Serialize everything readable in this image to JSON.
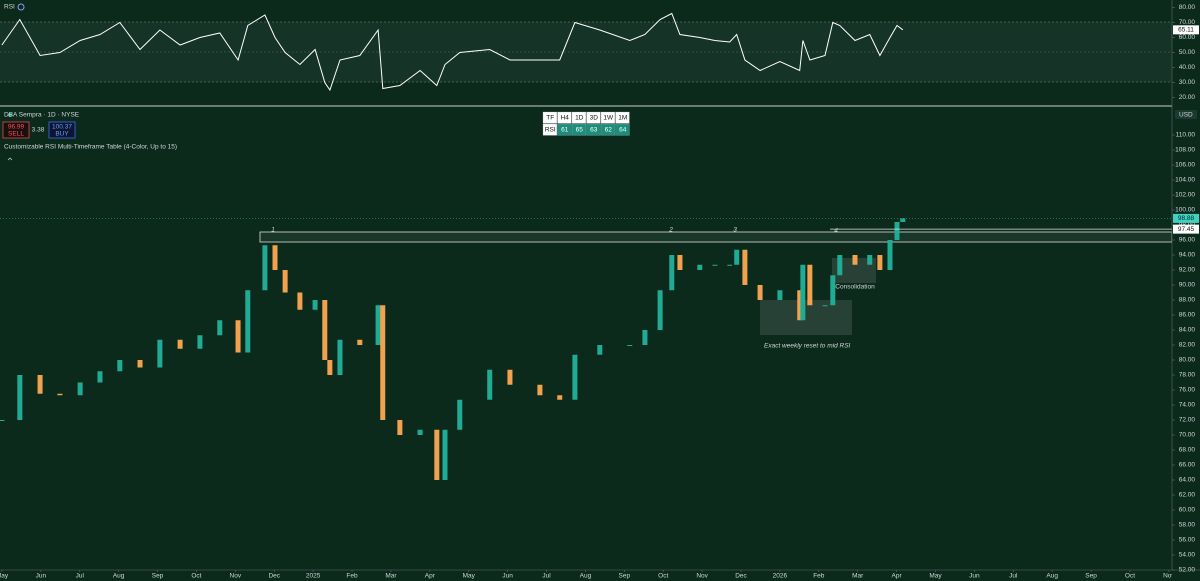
{
  "chart_data": [
    {
      "type": "candlestick",
      "title": "DBA Sempra · 1D · NYSE",
      "unit": "USD",
      "up_color": "#22ab94",
      "down_color": "#f2a24e",
      "x": [
        0.0,
        0.46,
        0.98,
        1.49,
        2.01,
        2.52,
        3.03,
        3.55,
        4.06,
        4.58,
        5.09,
        5.6,
        6.07,
        6.32,
        6.76,
        7.02,
        7.28,
        7.66,
        8.05,
        8.3,
        8.43,
        8.69,
        9.2,
        9.67,
        9.79,
        10.23,
        10.75,
        11.18,
        11.39,
        11.77,
        12.54,
        13.06,
        13.83,
        14.34,
        14.73,
        15.37,
        16.14,
        16.53,
        16.92,
        17.22,
        17.43,
        17.94,
        18.33,
        18.71,
        18.89,
        19.1,
        19.49,
        20.0,
        20.51,
        20.59,
        20.77,
        21.16,
        21.36,
        21.54,
        21.93,
        22.31,
        22.57,
        22.83,
        23.01,
        23.16
      ],
      "values": [
        72.0,
        78.0,
        75.5,
        75.3,
        77.0,
        78.5,
        80.0,
        79.0,
        82.7,
        81.5,
        83.3,
        85.3,
        81.0,
        89.3,
        95.3,
        92.0,
        89.0,
        86.7,
        88.0,
        80.0,
        78.0,
        82.7,
        82.0,
        87.3,
        72.0,
        70.0,
        70.7,
        64.0,
        70.7,
        74.7,
        78.7,
        76.7,
        75.3,
        74.7,
        80.7,
        82.0,
        82.0,
        84.0,
        89.3,
        94.0,
        92.0,
        92.7,
        92.7,
        92.7,
        94.7,
        90.0,
        88.0,
        89.3,
        85.3,
        92.7,
        87.3,
        87.3,
        91.3,
        94.0,
        92.7,
        94.0,
        92.0,
        96.0,
        98.4,
        98.88
      ],
      "levels": [
        97.45
      ],
      "xlim": [
        -0.05,
        30.08
      ],
      "xticks": [
        {
          "value": 0,
          "label": "May"
        },
        {
          "value": 1,
          "label": "Jun"
        },
        {
          "value": 2,
          "label": "Jul"
        },
        {
          "value": 3,
          "label": "Aug"
        },
        {
          "value": 4,
          "label": "Sep"
        },
        {
          "value": 5,
          "label": "Oct"
        },
        {
          "value": 6,
          "label": "Nov"
        },
        {
          "value": 7,
          "label": "Dec"
        },
        {
          "value": 8,
          "label": "2025"
        },
        {
          "value": 9,
          "label": "Feb"
        },
        {
          "value": 10,
          "label": "Mar"
        },
        {
          "value": 11,
          "label": "Apr"
        },
        {
          "value": 12,
          "label": "May"
        },
        {
          "value": 13,
          "label": "Jun"
        },
        {
          "value": 14,
          "label": "Jul"
        },
        {
          "value": 15,
          "label": "Aug"
        },
        {
          "value": 16,
          "label": "Sep"
        },
        {
          "value": 17,
          "label": "Oct"
        },
        {
          "value": 18,
          "label": "Nov"
        },
        {
          "value": 19,
          "label": "Dec"
        },
        {
          "value": 20,
          "label": "2026"
        },
        {
          "value": 21,
          "label": "Feb"
        },
        {
          "value": 22,
          "label": "Mar"
        },
        {
          "value": 23,
          "label": "Apr"
        },
        {
          "value": 24,
          "label": "May"
        },
        {
          "value": 25,
          "label": "Jun"
        },
        {
          "value": 26,
          "label": "Jul"
        },
        {
          "value": 27,
          "label": "Aug"
        },
        {
          "value": 28,
          "label": "Sep"
        },
        {
          "value": 29,
          "label": "Oct"
        },
        {
          "value": 30,
          "label": "Nov"
        }
      ],
      "ylim": [
        52,
        113.6
      ],
      "yticks": [
        {
          "value": 52,
          "label": "52.00"
        },
        {
          "value": 54,
          "label": "54.00"
        },
        {
          "value": 56,
          "label": "56.00"
        },
        {
          "value": 58,
          "label": "58.00"
        },
        {
          "value": 60,
          "label": "60.00"
        },
        {
          "value": 62,
          "label": "62.00"
        },
        {
          "value": 64,
          "label": "64.00"
        },
        {
          "value": 66,
          "label": "66.00"
        },
        {
          "value": 68,
          "label": "68.00"
        },
        {
          "value": 70,
          "label": "70.00"
        },
        {
          "value": 72,
          "label": "72.00"
        },
        {
          "value": 74,
          "label": "74.00"
        },
        {
          "value": 76,
          "label": "76.00"
        },
        {
          "value": 78,
          "label": "78.00"
        },
        {
          "value": 80,
          "label": "80.00"
        },
        {
          "value": 82,
          "label": "82.00"
        },
        {
          "value": 84,
          "label": "84.00"
        },
        {
          "value": 86,
          "label": "86.00"
        },
        {
          "value": 88,
          "label": "88.00"
        },
        {
          "value": 90,
          "label": "90.00"
        },
        {
          "value": 92,
          "label": "92.00"
        },
        {
          "value": 94,
          "label": "94.00"
        },
        {
          "value": 96,
          "label": "96.00"
        },
        {
          "value": 98,
          "label": "98.00"
        },
        {
          "value": 100,
          "label": "100.00"
        },
        {
          "value": 102,
          "label": "102.00"
        },
        {
          "value": 104,
          "label": "104.00"
        },
        {
          "value": 106,
          "label": "106.00"
        },
        {
          "value": 108,
          "label": "108.00"
        },
        {
          "value": 110,
          "label": "110.00"
        }
      ],
      "annotations": [
        "1",
        "2",
        "3",
        "4",
        "Consolidation",
        "Exact weekly reset to mid RSI"
      ]
    },
    {
      "type": "line",
      "title": "RSI",
      "color": "#ffffff",
      "x": [
        0.0,
        0.46,
        0.98,
        1.49,
        2.01,
        2.52,
        3.03,
        3.55,
        4.06,
        4.58,
        5.09,
        5.6,
        6.07,
        6.32,
        6.76,
        7.02,
        7.28,
        7.66,
        8.05,
        8.3,
        8.43,
        8.69,
        9.2,
        9.67,
        9.79,
        10.23,
        10.75,
        11.18,
        11.39,
        11.77,
        12.54,
        13.06,
        13.83,
        14.34,
        14.73,
        15.37,
        16.14,
        16.53,
        16.92,
        17.22,
        17.43,
        17.94,
        18.33,
        18.71,
        18.89,
        19.1,
        19.49,
        20.0,
        20.51,
        20.59,
        20.77,
        21.16,
        21.36,
        21.54,
        21.93,
        22.31,
        22.57,
        22.83,
        23.01,
        23.16
      ],
      "values": [
        55,
        72,
        48,
        50,
        58,
        62,
        70,
        52,
        65,
        55,
        60,
        63,
        45,
        68,
        75,
        60,
        50,
        42,
        52,
        30,
        25,
        45,
        48,
        65,
        26,
        28,
        38,
        28,
        42,
        50,
        52,
        45,
        45,
        45,
        70,
        65,
        58,
        62,
        72,
        76,
        62,
        60,
        58,
        57,
        62,
        45,
        38,
        44,
        38,
        58,
        45,
        48,
        70,
        68,
        58,
        62,
        48,
        60,
        68,
        65.11
      ],
      "xlim": [
        -0.05,
        30.08
      ],
      "ylim": [
        15,
        85
      ],
      "yticks": [
        {
          "value": 20,
          "label": "20.00"
        },
        {
          "value": 30,
          "label": "30.00"
        },
        {
          "value": 40,
          "label": "40.00"
        },
        {
          "value": 50,
          "label": "50.00"
        },
        {
          "value": 60,
          "label": "60.00"
        },
        {
          "value": 70,
          "label": "70.00"
        },
        {
          "value": 80,
          "label": "80.00"
        }
      ]
    }
  ],
  "toolbar": {
    "sell_price": "96.99",
    "sell": "SELL",
    "spread": "3.38",
    "buy_price": "100.37",
    "buy": "BUY",
    "indicator": "Customizable RSI Multi-Timeframe Table (4-Color, Up to 15)"
  },
  "rsi_table": {
    "header": [
      "TF",
      "H4",
      "1D",
      "3D",
      "1W",
      "1M"
    ],
    "row": [
      "RSI",
      "61",
      "65",
      "63",
      "62",
      "64"
    ]
  }
}
